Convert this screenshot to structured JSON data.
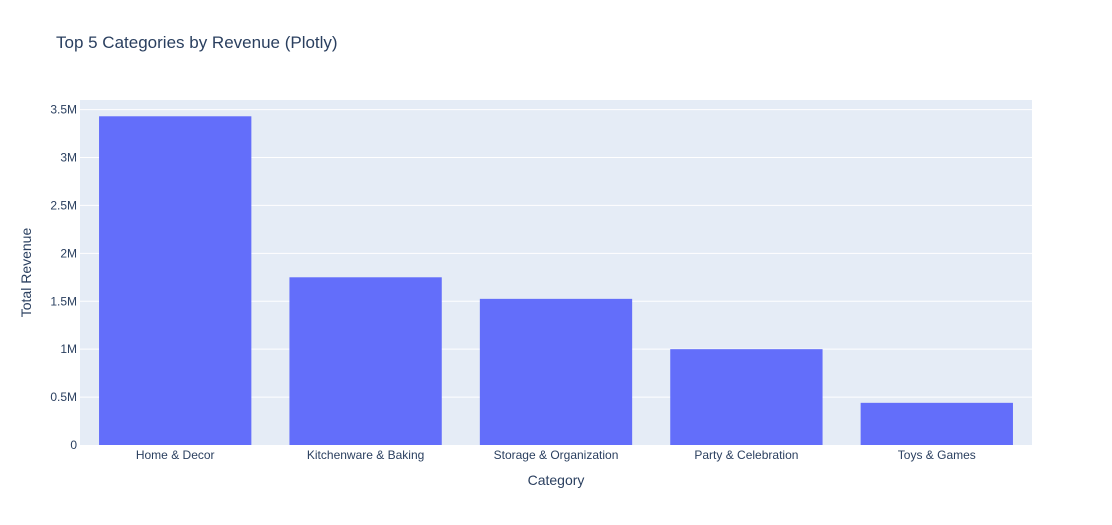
{
  "chart_data": {
    "type": "bar",
    "title": "Top 5 Categories by Revenue (Plotly)",
    "xlabel": "Category",
    "ylabel": "Total Revenue",
    "categories": [
      "Home & Decor",
      "Kitchenware & Baking",
      "Storage & Organization",
      "Party & Celebration",
      "Toys & Games"
    ],
    "values": [
      3430000,
      1750000,
      1525000,
      1000000,
      440000
    ],
    "ylim": [
      0,
      3600000
    ],
    "yticks": [
      0,
      500000,
      1000000,
      1500000,
      2000000,
      2500000,
      3000000,
      3500000
    ],
    "ytick_labels": [
      "0",
      "0.5M",
      "1M",
      "1.5M",
      "2M",
      "2.5M",
      "3M",
      "3.5M"
    ],
    "grid": true,
    "colors": {
      "bar": "#636efa",
      "plot_bg": "#e5ecf6",
      "grid": "#ffffff",
      "text": "#2a3f5f"
    }
  }
}
